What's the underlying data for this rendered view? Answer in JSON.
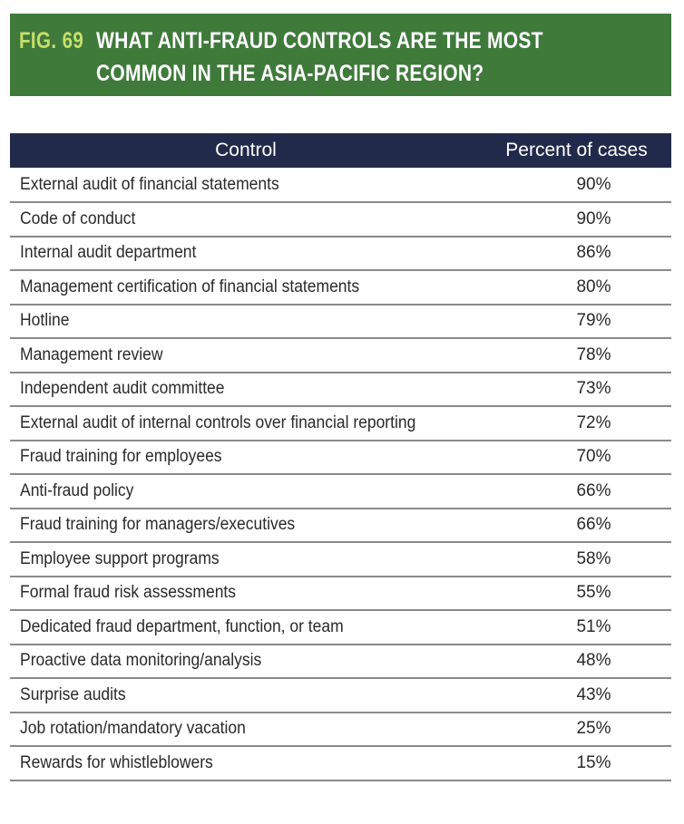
{
  "figure": {
    "label": "FIG. 69",
    "title": "WHAT ANTI-FRAUD CONTROLS ARE THE MOST COMMON IN THE ASIA-PACIFIC REGION?"
  },
  "colors": {
    "header_background": "#3f7a3b",
    "label_color": "#c9df6b",
    "table_header_background": "#222a4b"
  },
  "table": {
    "columns": [
      "Control",
      "Percent of cases"
    ],
    "rows": [
      {
        "control": "External audit of financial statements",
        "percent": "90%"
      },
      {
        "control": "Code of conduct",
        "percent": "90%"
      },
      {
        "control": "Internal audit department",
        "percent": "86%"
      },
      {
        "control": "Management certification of financial statements",
        "percent": "80%"
      },
      {
        "control": "Hotline",
        "percent": "79%"
      },
      {
        "control": "Management review",
        "percent": "78%"
      },
      {
        "control": "Independent audit committee",
        "percent": "73%"
      },
      {
        "control": "External audit of internal controls over financial reporting",
        "percent": "72%"
      },
      {
        "control": "Fraud training for employees",
        "percent": "70%"
      },
      {
        "control": "Anti-fraud policy",
        "percent": "66%"
      },
      {
        "control": "Fraud training for managers/executives",
        "percent": "66%"
      },
      {
        "control": "Employee support programs",
        "percent": "58%"
      },
      {
        "control": "Formal fraud risk assessments",
        "percent": "55%"
      },
      {
        "control": "Dedicated fraud department, function, or team",
        "percent": "51%"
      },
      {
        "control": "Proactive data monitoring/analysis",
        "percent": "48%"
      },
      {
        "control": "Surprise audits",
        "percent": "43%"
      },
      {
        "control": "Job rotation/mandatory vacation",
        "percent": "25%"
      },
      {
        "control": "Rewards for whistleblowers",
        "percent": "15%"
      }
    ]
  }
}
